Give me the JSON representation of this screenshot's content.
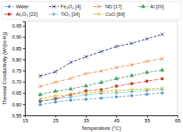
{
  "chart_data": {
    "type": "line",
    "x_label": "Temperature (°C)",
    "y_label": "Thermal Conductivity (W/(m·K))",
    "x": [
      20,
      25,
      30,
      35,
      40,
      45,
      50,
      55,
      60
    ],
    "xlim": [
      15,
      65
    ],
    "xticks": [
      15,
      25,
      35,
      45,
      55,
      65
    ],
    "ylim": [
      0.55,
      0.97
    ],
    "yticks": [
      0.55,
      {
        "value": 0.6,
        "label": "0.60"
      },
      0.65,
      {
        "value": 0.7,
        "label": "0.70"
      },
      0.75,
      {
        "value": 0.8,
        "label": "0.80"
      },
      0.85,
      {
        "value": 0.9,
        "label": "0.90"
      },
      0.95
    ],
    "grid": false,
    "legend": "top",
    "series": [
      {
        "name": "Water",
        "color": "#5b9bd5",
        "line_style": "dashed",
        "marker": "circle",
        "values": [
          0.598,
          0.61,
          0.618,
          0.622,
          0.627,
          0.633,
          0.638,
          0.644,
          0.65
        ]
      },
      {
        "name": "Fe₃O₄ [4]",
        "color": "#1f2d7b",
        "line_style": "dashed",
        "marker": "x",
        "values": [
          0.726,
          0.745,
          0.787,
          0.812,
          0.835,
          0.858,
          0.872,
          0.892,
          0.912
        ]
      },
      {
        "name": "ND [17]",
        "color": "#e07b39",
        "line_style": "dashdot",
        "marker": "x",
        "values": [
          0.68,
          0.698,
          0.715,
          0.737,
          0.748,
          0.764,
          0.776,
          0.792,
          0.803
        ]
      },
      {
        "name": "Al [20]",
        "color": "#44a062",
        "line_style": "dashed",
        "marker": "triangle",
        "values": [
          0.643,
          0.658,
          0.668,
          0.682,
          0.697,
          0.714,
          0.728,
          0.742,
          0.752
        ]
      },
      {
        "name": "Al₂O₃ [22]",
        "color": "#c0392b",
        "line_style": "dashdot",
        "marker": "square",
        "values": [
          0.613,
          0.625,
          0.643,
          0.66,
          0.665,
          0.681,
          0.692,
          0.703,
          0.714
        ]
      },
      {
        "name": "TiO₂ [34]",
        "color": "#1f9bbd",
        "line_style": "dotted",
        "marker": "plus",
        "values": [
          0.615,
          0.623,
          0.632,
          0.641,
          0.648,
          0.651,
          0.656,
          0.661,
          0.666
        ]
      },
      {
        "name": "CuO [69]",
        "color": "#d4ac0d",
        "line_style": "dashed",
        "marker": "x",
        "values": [
          0.624,
          0.638,
          0.644,
          0.648,
          0.656,
          0.661,
          0.665,
          0.668,
          0.671
        ]
      }
    ]
  }
}
